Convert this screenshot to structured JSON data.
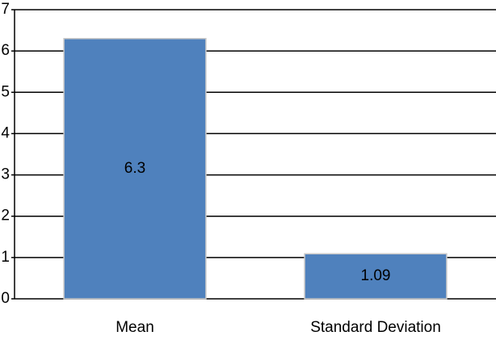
{
  "chart_data": {
    "type": "bar",
    "categories": [
      "Mean",
      "Standard Deviation"
    ],
    "values": [
      6.3,
      1.09
    ],
    "color": "#4f81bd",
    "ylim": [
      0,
      7
    ],
    "yticks": [
      0,
      1,
      2,
      3,
      4,
      5,
      6,
      7
    ],
    "grid": true
  }
}
